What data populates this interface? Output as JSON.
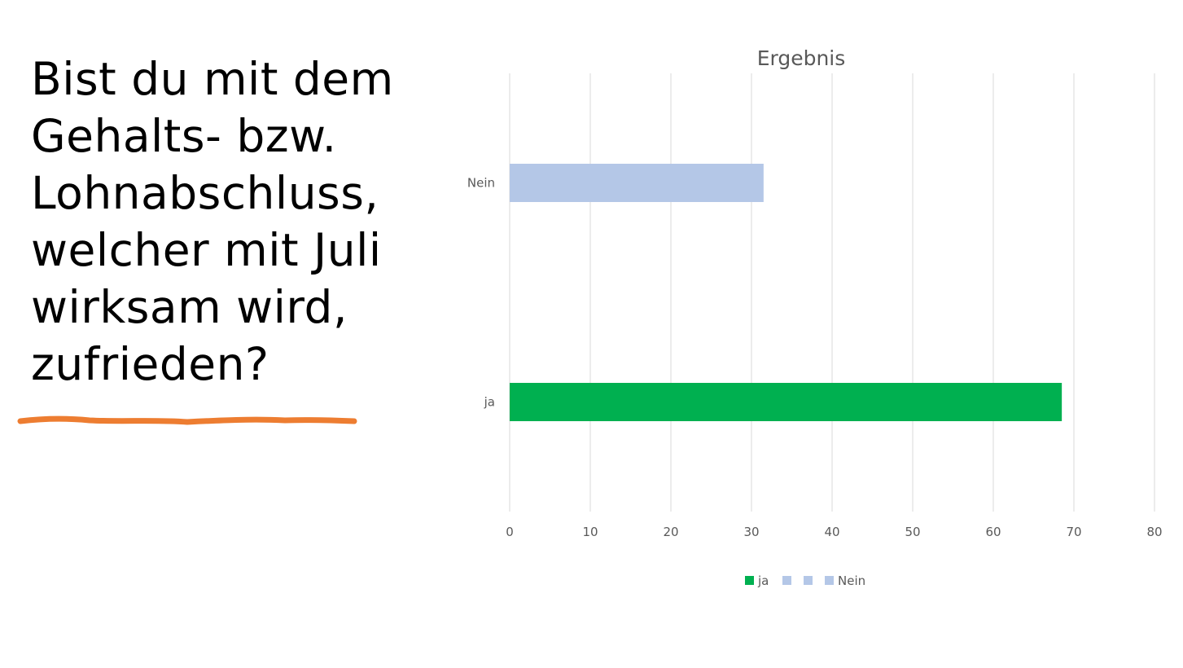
{
  "slide": {
    "question": "Bist du mit dem\nGehalts- bzw.\nLohnabschluss,\nwelcher mit Juli\nwirksam wird,\nzufrieden?",
    "underline_color": "#ED7D31"
  },
  "chart_data": {
    "type": "bar",
    "orientation": "horizontal",
    "title": "Ergebnis",
    "categories": [
      "ja",
      "Nein"
    ],
    "values": [
      68.5,
      31.5
    ],
    "colors": [
      "#00B050",
      "#B4C7E7"
    ],
    "xlim": [
      0,
      80
    ],
    "xticks": [
      0,
      10,
      20,
      30,
      40,
      50,
      60,
      70,
      80
    ],
    "grid": true,
    "legend": {
      "position": "bottom",
      "entries": [
        {
          "label": "ja",
          "color": "#00B050"
        },
        {
          "label": "",
          "color": "#B4C7E7"
        },
        {
          "label": "",
          "color": "#B4C7E7"
        },
        {
          "label": "Nein",
          "color": "#B4C7E7"
        }
      ]
    }
  }
}
